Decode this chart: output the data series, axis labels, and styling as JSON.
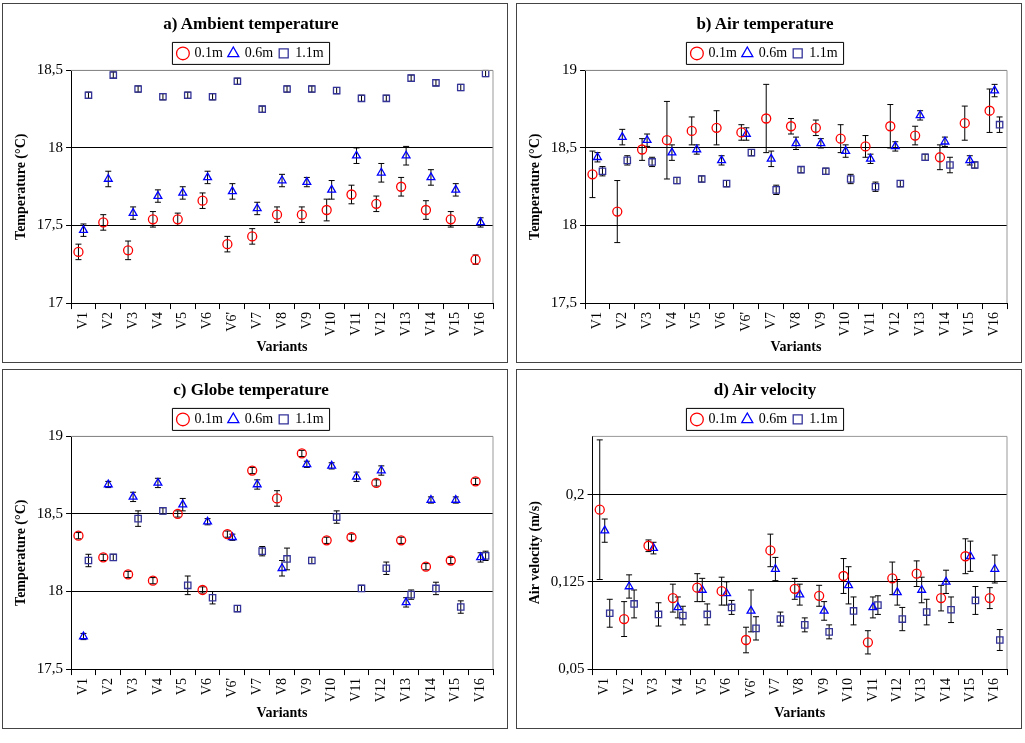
{
  "chart_data": [
    {
      "type": "scatter",
      "title": "a) Ambient temperature",
      "xlabel": "Variants",
      "ylabel": "Temperature (°C)",
      "categories": [
        "V1",
        "V2",
        "V3",
        "V4",
        "V5",
        "V6",
        "V6'",
        "V7",
        "V8",
        "V9",
        "V10",
        "V11",
        "V12",
        "V13",
        "V14",
        "V15",
        "V16"
      ],
      "ylim": [
        17,
        18.5
      ],
      "yticks": [
        17,
        {
          "value": 17.5,
          "label": "17,5"
        },
        18,
        {
          "value": 18.5,
          "label": "18,5"
        }
      ],
      "grid": "y",
      "legend": "top",
      "series": [
        {
          "name": "0.1m",
          "color": "#ff0000",
          "marker": "circle",
          "values": [
            17.33,
            17.52,
            17.34,
            17.54,
            17.54,
            17.66,
            17.38,
            17.43,
            17.57,
            17.57,
            17.6,
            17.7,
            17.64,
            17.75,
            17.6,
            17.54,
            17.28
          ],
          "errors": [
            0.05,
            0.05,
            0.06,
            0.05,
            0.04,
            0.05,
            0.05,
            0.05,
            0.05,
            0.05,
            0.07,
            0.06,
            0.05,
            0.06,
            0.06,
            0.05,
            0.03
          ]
        },
        {
          "name": "0.6m",
          "color": "#0000ff",
          "marker": "triangle",
          "values": [
            17.47,
            17.8,
            17.58,
            17.69,
            17.71,
            17.81,
            17.72,
            17.61,
            17.79,
            17.78,
            17.73,
            17.95,
            17.84,
            17.95,
            17.81,
            17.73,
            17.52
          ],
          "errors": [
            0.04,
            0.05,
            0.04,
            0.04,
            0.04,
            0.04,
            0.05,
            0.04,
            0.04,
            0.03,
            0.06,
            0.05,
            0.06,
            0.06,
            0.05,
            0.04,
            0.03
          ]
        },
        {
          "name": "1.1m",
          "color": "#333399",
          "marker": "square",
          "values": [
            18.34,
            18.47,
            18.38,
            18.33,
            18.34,
            18.33,
            18.43,
            18.25,
            18.38,
            18.38,
            18.37,
            18.32,
            18.32,
            18.45,
            18.42,
            18.39,
            18.48
          ],
          "errors": [
            0.02,
            0.02,
            0.02,
            0.02,
            0.02,
            0.02,
            0.02,
            0.02,
            0.02,
            0.02,
            0.02,
            0.02,
            0.02,
            0.02,
            0.02,
            0.02,
            0.02
          ]
        }
      ]
    },
    {
      "type": "scatter",
      "title": "b) Air temperature",
      "xlabel": "Variants",
      "ylabel": "Temperature (°C)",
      "categories": [
        "V1",
        "V2",
        "V3",
        "V4",
        "V5",
        "V6",
        "V6'",
        "V7",
        "V8",
        "V9",
        "V10",
        "V11",
        "V12",
        "V13",
        "V14",
        "V15",
        "V16"
      ],
      "ylim": [
        17.5,
        19
      ],
      "yticks": [
        {
          "value": 17.5,
          "label": "17,5"
        },
        18,
        {
          "value": 18.5,
          "label": "18,5"
        },
        19
      ],
      "grid": "y",
      "legend": "top",
      "series": [
        {
          "name": "0.1m",
          "color": "#ff0000",
          "marker": "circle",
          "values": [
            18.33,
            18.09,
            18.49,
            18.55,
            18.61,
            18.63,
            18.6,
            18.69,
            18.64,
            18.63,
            18.56,
            18.51,
            18.64,
            18.58,
            18.44,
            18.66,
            18.74
          ],
          "errors": [
            0.15,
            0.2,
            0.07,
            0.25,
            0.09,
            0.11,
            0.05,
            0.22,
            0.05,
            0.05,
            0.09,
            0.07,
            0.14,
            0.06,
            0.08,
            0.11,
            0.14
          ]
        },
        {
          "name": "0.6m",
          "color": "#0000ff",
          "marker": "triangle",
          "values": [
            18.44,
            18.57,
            18.55,
            18.47,
            18.49,
            18.42,
            18.59,
            18.43,
            18.53,
            18.53,
            18.48,
            18.43,
            18.51,
            18.71,
            18.54,
            18.42,
            18.87
          ],
          "errors": [
            0.03,
            0.05,
            0.04,
            0.05,
            0.03,
            0.03,
            0.04,
            0.05,
            0.04,
            0.03,
            0.04,
            0.03,
            0.03,
            0.03,
            0.03,
            0.03,
            0.04
          ]
        },
        {
          "name": "1.1m",
          "color": "#333399",
          "marker": "square",
          "values": [
            18.35,
            18.42,
            18.41,
            18.29,
            18.3,
            18.27,
            18.47,
            18.23,
            18.36,
            18.35,
            18.3,
            18.25,
            18.27,
            18.44,
            18.39,
            18.39,
            18.65
          ],
          "errors": [
            0.03,
            0.03,
            0.03,
            0.02,
            0.02,
            0.02,
            0.02,
            0.03,
            0.02,
            0.02,
            0.03,
            0.03,
            0.02,
            0.02,
            0.05,
            0.02,
            0.05
          ]
        }
      ]
    },
    {
      "type": "scatter",
      "title": "c) Globe temperature",
      "xlabel": "Variants",
      "ylabel": "Temperature (°C)",
      "categories": [
        "V1",
        "V2",
        "V3",
        "V4",
        "V5",
        "V6",
        "V6'",
        "V7",
        "V8",
        "V9",
        "V10",
        "V11",
        "V12",
        "V13",
        "V14",
        "V15",
        "V16"
      ],
      "ylim": [
        17.5,
        19
      ],
      "yticks": [
        {
          "value": 17.5,
          "label": "17,5"
        },
        18,
        {
          "value": 18.5,
          "label": "18,5"
        },
        19
      ],
      "grid": "y",
      "legend": "top",
      "series": [
        {
          "name": "0.1m",
          "color": "#ff0000",
          "marker": "circle",
          "values": [
            18.36,
            18.22,
            18.11,
            18.07,
            18.5,
            18.01,
            18.37,
            18.78,
            18.6,
            18.89,
            18.33,
            18.35,
            18.7,
            18.33,
            18.16,
            18.2,
            18.71
          ],
          "errors": [
            0.02,
            0.02,
            0.02,
            0.02,
            0.02,
            0.02,
            0.02,
            0.02,
            0.05,
            0.02,
            0.02,
            0.02,
            0.02,
            0.02,
            0.02,
            0.02,
            0.02
          ]
        },
        {
          "name": "0.6m",
          "color": "#0000ff",
          "marker": "triangle",
          "values": [
            17.71,
            18.69,
            18.61,
            18.7,
            18.56,
            18.45,
            18.35,
            18.69,
            18.15,
            18.82,
            18.81,
            18.74,
            18.78,
            17.93,
            18.59,
            18.59,
            18.22
          ],
          "errors": [
            0.02,
            0.02,
            0.03,
            0.03,
            0.04,
            0.02,
            0.02,
            0.03,
            0.05,
            0.02,
            0.02,
            0.03,
            0.03,
            0.03,
            0.02,
            0.02,
            0.03
          ]
        },
        {
          "name": "1.1m",
          "color": "#333399",
          "marker": "square",
          "values": [
            18.2,
            18.22,
            18.47,
            18.52,
            18.04,
            17.96,
            17.89,
            18.26,
            18.21,
            18.2,
            18.48,
            18.02,
            18.15,
            17.98,
            18.02,
            17.9,
            18.23
          ],
          "errors": [
            0.04,
            0.02,
            0.05,
            0.02,
            0.06,
            0.04,
            0.02,
            0.03,
            0.07,
            0.02,
            0.04,
            0.02,
            0.04,
            0.03,
            0.04,
            0.04,
            0.03
          ]
        }
      ]
    },
    {
      "type": "scatter",
      "title": "d) Air velocity",
      "xlabel": "Variants",
      "ylabel": "Air velocity (m/s)",
      "categories": [
        "V1",
        "V2",
        "V3",
        "V4",
        "V5",
        "V6",
        "V6'",
        "V7",
        "V8",
        "V9",
        "V10",
        "V11",
        "V12",
        "V13",
        "V14",
        "V15",
        "V16"
      ],
      "ylim": [
        0.05,
        0.25
      ],
      "yticks": [
        {
          "value": 0.05,
          "label": "0,05"
        },
        {
          "value": 0.125,
          "label": "0,125"
        },
        {
          "value": 0.2,
          "label": "0,2"
        }
      ],
      "grid": "y",
      "legend": "top",
      "series": [
        {
          "name": "0.1m",
          "color": "#ff0000",
          "marker": "circle",
          "values": [
            0.187,
            0.093,
            0.156,
            0.111,
            0.12,
            0.117,
            0.075,
            0.152,
            0.119,
            0.113,
            0.13,
            0.073,
            0.128,
            0.132,
            0.111,
            0.147,
            0.111
          ],
          "errors": [
            0.06,
            0.015,
            0.005,
            0.012,
            0.012,
            0.012,
            0.011,
            0.014,
            0.009,
            0.009,
            0.015,
            0.01,
            0.014,
            0.011,
            0.011,
            0.015,
            0.009
          ]
        },
        {
          "name": "0.6m",
          "color": "#0000ff",
          "marker": "triangle",
          "values": [
            0.169,
            0.121,
            0.154,
            0.103,
            0.118,
            0.115,
            0.1,
            0.136,
            0.114,
            0.1,
            0.122,
            0.103,
            0.116,
            0.118,
            0.125,
            0.147,
            0.136
          ],
          "errors": [
            0.01,
            0.01,
            0.005,
            0.009,
            0.01,
            0.01,
            0.018,
            0.01,
            0.009,
            0.008,
            0.016,
            0.009,
            0.011,
            0.011,
            0.01,
            0.013,
            0.012
          ]
        },
        {
          "name": "1.1m",
          "color": "#333399",
          "marker": "square",
          "values": [
            0.098,
            0.106,
            0.097,
            0.096,
            0.097,
            0.103,
            0.085,
            0.093,
            0.088,
            0.082,
            0.1,
            0.105,
            0.093,
            0.099,
            0.101,
            0.109,
            0.075
          ],
          "errors": [
            0.012,
            0.012,
            0.01,
            0.008,
            0.009,
            0.006,
            0.01,
            0.006,
            0.006,
            0.006,
            0.012,
            0.008,
            0.01,
            0.011,
            0.011,
            0.012,
            0.009
          ]
        }
      ]
    }
  ]
}
